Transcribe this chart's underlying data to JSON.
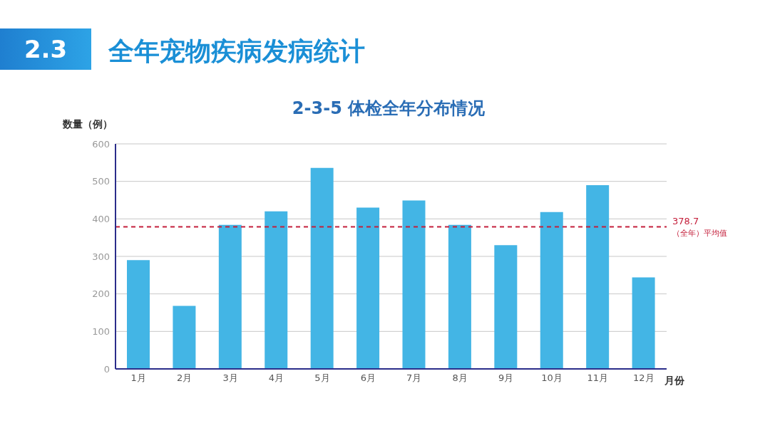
{
  "chart_data": {
    "type": "bar",
    "title": "全年宠物疾病发病统计",
    "subtitle": "2-3-5 体检全年分布情况",
    "xlabel": "月份",
    "ylabel": "数量（例）",
    "annotations": [
      "2.3"
    ],
    "categories": [
      "1月",
      "2月",
      "3月",
      "4月",
      "5月",
      "6月",
      "7月",
      "8月",
      "9月",
      "10月",
      "11月",
      "12月"
    ],
    "values": [
      290,
      168,
      384,
      420,
      536,
      430,
      449,
      384,
      330,
      418,
      490,
      244
    ],
    "color": "#43b5e5",
    "ylim": [
      0,
      600
    ],
    "yticks": [
      0,
      100,
      200,
      300,
      400,
      500,
      600
    ],
    "grid": "y",
    "legend": false,
    "ref_lines": [
      {
        "axis": "y",
        "value": 378.7,
        "label": "378.7\n（全年）平均值",
        "color": "#c41e3a",
        "line_style": "dashed"
      }
    ]
  }
}
